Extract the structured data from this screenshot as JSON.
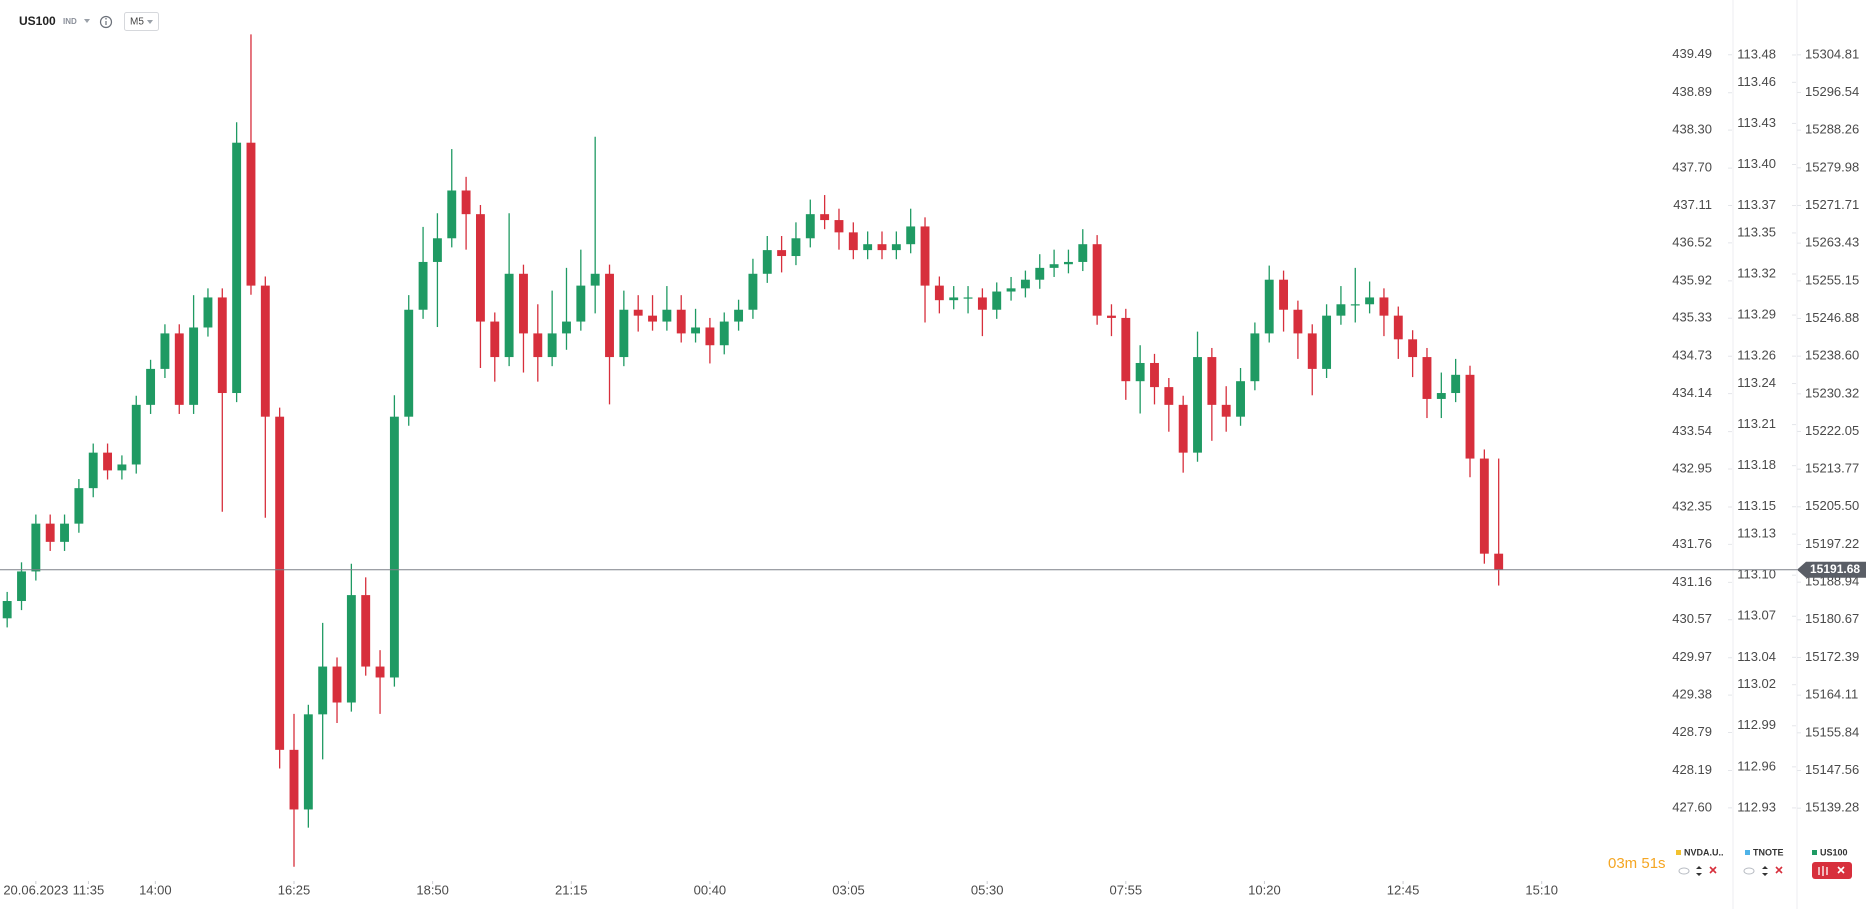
{
  "toolbar": {
    "symbol": "US100",
    "kind": "IND",
    "timeframe": "M5"
  },
  "countdown": "03m 51s",
  "chart_data": {
    "type": "candlestick",
    "xlim": [
      -0.5,
      348
    ],
    "xticks": [
      {
        "value": 7,
        "label": "20.06.2023"
      },
      {
        "value": 18,
        "label": "11:35"
      },
      {
        "value": 32,
        "label": "14:00"
      },
      {
        "value": 61,
        "label": "16:25"
      },
      {
        "value": 90,
        "label": "18:50"
      },
      {
        "value": 119,
        "label": "21:15"
      },
      {
        "value": 148,
        "label": "00:40"
      },
      {
        "value": 177,
        "label": "03:05"
      },
      {
        "value": 206,
        "label": "05:30"
      },
      {
        "value": 235,
        "label": "07:55"
      },
      {
        "value": 264,
        "label": "10:20"
      },
      {
        "value": 293,
        "label": "12:45"
      },
      {
        "value": 322,
        "label": "15:10"
      }
    ],
    "ylim": [
      15124.6,
      15312.9
    ],
    "yticks": [
      15304.81,
      15296.54,
      15288.26,
      15279.98,
      15271.71,
      15263.43,
      15255.15,
      15246.88,
      {
        "value": 15238.6,
        "label": "15238.60"
      },
      15230.32,
      15222.05,
      15213.77,
      {
        "value": 15205.5,
        "label": "15205.50"
      },
      15197.22,
      15188.94,
      15180.67,
      15172.39,
      15164.11,
      15155.84,
      15147.56,
      15139.28
    ],
    "current_price": 15191.68,
    "grid": false,
    "up_color": "#1f9a63",
    "down_color": "#d72f3c",
    "series": [
      {
        "name": "US100",
        "color": "#1f9a63",
        "x": [
          1,
          4,
          7,
          10,
          13,
          16,
          19,
          22,
          25,
          28,
          31,
          34,
          37,
          40,
          43,
          46,
          49,
          52,
          55,
          58,
          61,
          64,
          67,
          70,
          73,
          76,
          79,
          82,
          85,
          88,
          91,
          94,
          97,
          100,
          103,
          106,
          109,
          112,
          115,
          118,
          121,
          124,
          127,
          130,
          133,
          136,
          139,
          142,
          145,
          148,
          151,
          154,
          157,
          160,
          163,
          166,
          169,
          172,
          175,
          178,
          181,
          184,
          187,
          190,
          193,
          196,
          199,
          202,
          205,
          208,
          211,
          214,
          217,
          220,
          223,
          226,
          229,
          232,
          235,
          238,
          241,
          244,
          247,
          250,
          253,
          256,
          259,
          262,
          265,
          268,
          271,
          274,
          277,
          280,
          283,
          286,
          289,
          292,
          295,
          298,
          301,
          304,
          307,
          310,
          313
        ],
        "open": [
          15181.0,
          15184.8,
          15191.3,
          15201.8,
          15197.8,
          15201.8,
          15209.6,
          15217.4,
          15213.5,
          15214.8,
          15227.9,
          15235.8,
          15243.6,
          15227.9,
          15244.9,
          15251.5,
          15230.5,
          15285.5,
          15254.1,
          15225.3,
          15152.1,
          15139.0,
          15159.9,
          15170.4,
          15162.5,
          15186.1,
          15170.4,
          15168.0,
          15225.3,
          15248.8,
          15259.3,
          15264.5,
          15275.0,
          15269.8,
          15246.2,
          15238.4,
          15256.7,
          15243.6,
          15238.4,
          15243.6,
          15246.2,
          15254.1,
          15256.7,
          15238.4,
          15248.8,
          15247.5,
          15246.2,
          15248.8,
          15243.6,
          15244.9,
          15241.0,
          15246.2,
          15248.8,
          15256.7,
          15261.9,
          15260.6,
          15264.5,
          15269.8,
          15268.5,
          15265.8,
          15261.9,
          15263.2,
          15261.9,
          15263.2,
          15267.1,
          15254.1,
          15250.9,
          15251.5,
          15251.5,
          15248.8,
          15252.8,
          15253.5,
          15255.4,
          15258.0,
          15258.8,
          15259.3,
          15263.2,
          15247.5,
          15247.0,
          15233.1,
          15237.1,
          15231.8,
          15227.9,
          15217.4,
          15238.4,
          15227.9,
          15225.3,
          15233.1,
          15243.6,
          15255.4,
          15248.8,
          15243.6,
          15235.8,
          15247.5,
          15250.0,
          15250.0,
          15251.5,
          15247.5,
          15242.3,
          15238.4,
          15229.2,
          15230.5,
          15234.5,
          15216.1,
          15195.2
        ],
        "high": [
          15186.8,
          15193.3,
          15203.8,
          15203.8,
          15203.8,
          15211.6,
          15219.4,
          15219.4,
          15216.8,
          15229.9,
          15237.8,
          15245.6,
          15245.6,
          15252.0,
          15253.5,
          15253.5,
          15290.0,
          15309.3,
          15256.1,
          15227.3,
          15160.0,
          15162.0,
          15180.0,
          15172.4,
          15193.0,
          15190.0,
          15174.0,
          15230.0,
          15252.0,
          15267.0,
          15270.0,
          15284.1,
          15278.0,
          15271.8,
          15248.2,
          15270.0,
          15258.7,
          15250.0,
          15253.0,
          15258.0,
          15262.0,
          15286.8,
          15258.7,
          15253.0,
          15252.0,
          15252.0,
          15254.0,
          15252.0,
          15249.0,
          15247.0,
          15248.2,
          15251.0,
          15260.0,
          15265.0,
          15265.0,
          15268.0,
          15273.0,
          15274.0,
          15271.0,
          15268.0,
          15266.0,
          15266.0,
          15266.0,
          15271.0,
          15269.1,
          15256.1,
          15254.0,
          15254.0,
          15253.5,
          15254.8,
          15256.0,
          15257.4,
          15261.0,
          15262.0,
          15262.0,
          15266.5,
          15265.2,
          15250.0,
          15249.0,
          15241.0,
          15239.1,
          15233.8,
          15229.9,
          15244.0,
          15240.4,
          15232.0,
          15236.0,
          15246.0,
          15258.5,
          15257.4,
          15250.8,
          15245.6,
          15250.0,
          15254.0,
          15258.0,
          15255.0,
          15253.5,
          15249.5,
          15244.3,
          15240.4,
          15235.0,
          15238.0,
          15236.5,
          15218.1,
          15216.1
        ],
        "low": [
          15179.0,
          15182.8,
          15189.3,
          15195.8,
          15195.8,
          15199.8,
          15207.6,
          15211.5,
          15211.5,
          15212.8,
          15225.9,
          15233.8,
          15225.9,
          15225.9,
          15242.9,
          15204.4,
          15228.5,
          15252.1,
          15203.1,
          15148.0,
          15126.4,
          15135.0,
          15150.0,
          15158.0,
          15160.5,
          15168.4,
          15160.0,
          15166.0,
          15223.3,
          15246.8,
          15245.0,
          15262.5,
          15262.0,
          15236.0,
          15233.0,
          15236.4,
          15235.0,
          15233.0,
          15236.4,
          15240.0,
          15244.2,
          15248.0,
          15228.0,
          15236.4,
          15244.0,
          15244.2,
          15244.2,
          15241.6,
          15241.6,
          15237.0,
          15239.0,
          15244.2,
          15246.8,
          15254.7,
          15257.0,
          15258.6,
          15262.5,
          15266.5,
          15262.0,
          15259.9,
          15259.9,
          15259.9,
          15259.9,
          15261.2,
          15246.0,
          15248.0,
          15248.9,
          15248.0,
          15243.0,
          15246.8,
          15250.8,
          15251.5,
          15253.4,
          15256.0,
          15256.8,
          15257.3,
          15245.5,
          15243.0,
          15229.0,
          15226.0,
          15228.0,
          15222.0,
          15213.0,
          15215.4,
          15220.0,
          15222.0,
          15223.3,
          15231.1,
          15241.6,
          15244.0,
          15238.0,
          15230.0,
          15233.8,
          15245.5,
          15246.0,
          15248.0,
          15243.0,
          15238.0,
          15234.0,
          15225.0,
          15225.0,
          15228.5,
          15212.0,
          15193.0,
          15188.2
        ],
        "close": [
          15184.8,
          15191.3,
          15201.8,
          15197.8,
          15201.8,
          15209.6,
          15217.4,
          15213.5,
          15214.8,
          15227.9,
          15235.8,
          15243.6,
          15227.9,
          15244.9,
          15251.5,
          15230.5,
          15285.5,
          15254.1,
          15225.3,
          15152.1,
          15139.0,
          15159.9,
          15170.4,
          15162.5,
          15186.1,
          15170.4,
          15168.0,
          15225.3,
          15248.8,
          15259.3,
          15264.5,
          15275.0,
          15269.8,
          15246.2,
          15238.4,
          15256.7,
          15243.6,
          15238.4,
          15243.6,
          15246.2,
          15254.1,
          15256.7,
          15238.4,
          15248.8,
          15247.5,
          15246.2,
          15248.8,
          15243.6,
          15244.9,
          15241.0,
          15246.2,
          15248.8,
          15256.7,
          15261.9,
          15260.6,
          15264.5,
          15269.8,
          15268.5,
          15265.8,
          15261.9,
          15263.2,
          15261.9,
          15263.2,
          15267.1,
          15254.1,
          15250.9,
          15251.5,
          15251.5,
          15248.8,
          15252.8,
          15253.5,
          15255.4,
          15258.0,
          15258.8,
          15259.3,
          15263.2,
          15247.5,
          15247.0,
          15233.1,
          15237.1,
          15231.8,
          15227.9,
          15217.4,
          15238.4,
          15227.9,
          15225.3,
          15233.1,
          15243.6,
          15255.4,
          15248.8,
          15243.6,
          15235.8,
          15247.5,
          15250.0,
          15250.0,
          15251.5,
          15247.5,
          15242.3,
          15238.4,
          15229.2,
          15230.5,
          15234.5,
          15216.1,
          15195.2,
          15191.7
        ]
      }
    ],
    "overlay_axes": [
      {
        "name": "NVDA.U..",
        "color": "#f2c12e",
        "ylim": [
          426.54,
          440.07
        ],
        "yticks": [
          439.49,
          438.89,
          {
            "value": 438.3,
            "label": "438.30"
          },
          {
            "value": 437.7,
            "label": "437.70"
          },
          437.11,
          436.52,
          435.92,
          435.33,
          434.73,
          434.14,
          433.54,
          432.95,
          432.35,
          431.76,
          431.16,
          430.57,
          429.97,
          429.38,
          428.79,
          428.19,
          {
            "value": 427.6,
            "label": "427.60"
          }
        ]
      },
      {
        "name": "TNOTE",
        "color": "#4fb3e8",
        "ylim": [
          112.881,
          113.507
        ],
        "yticks": [
          113.48,
          113.46,
          113.43,
          {
            "value": 113.4,
            "label": "113.40"
          },
          113.37,
          113.35,
          113.32,
          113.29,
          113.26,
          113.24,
          113.21,
          113.18,
          113.15,
          113.13,
          {
            "value": 113.1,
            "label": "113.10"
          },
          113.07,
          113.04,
          113.02,
          112.99,
          112.96,
          112.93
        ]
      }
    ]
  }
}
